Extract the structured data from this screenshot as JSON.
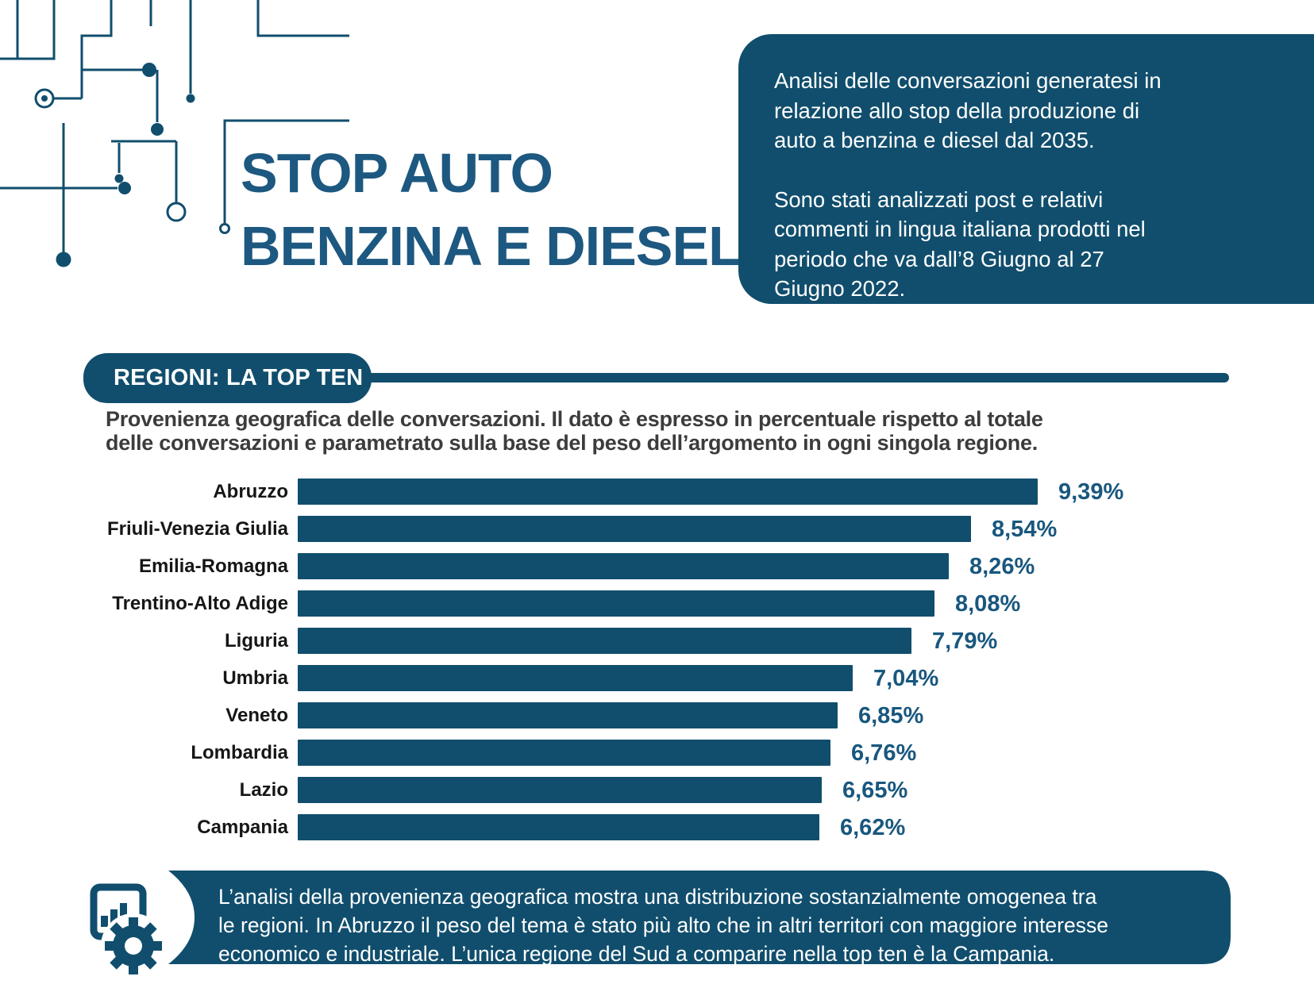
{
  "colors": {
    "primary": "#114E6D",
    "title": "#1D5880",
    "value_label": "#19577E",
    "subtitle_text": "#3C3C3C",
    "region_label": "#161616",
    "box_text": "#FFFFFF"
  },
  "header": {
    "title_line1": "STOP AUTO",
    "title_line2": "BENZINA E DIESEL"
  },
  "intro_box": {
    "paragraph1_lines": [
      "Analisi delle conversazioni generatesi in",
      "relazione allo stop della produzione di",
      "auto a benzina e diesel dal 2035."
    ],
    "paragraph2_lines": [
      "Sono stati analizzati post e relativi",
      "commenti in lingua italiana prodotti nel",
      "periodo che va dall’8 Giugno al 27",
      "Giugno 2022."
    ]
  },
  "section": {
    "badge_label": "REGIONI: LA TOP TEN",
    "subtitle_lines": [
      "Provenienza geografica delle conversazioni. Il dato è espresso in percentuale rispetto al totale",
      "delle conversazioni e parametrato sulla base del peso dell’argomento in ogni singola regione."
    ]
  },
  "chart_data": {
    "type": "bar",
    "orientation": "horizontal",
    "title": "Regioni: la top ten",
    "xlabel": "",
    "ylabel": "",
    "xlim": [
      0,
      10
    ],
    "grid": false,
    "bar_color": "#114E6D",
    "categories": [
      "Abruzzo",
      "Friuli-Venezia Giulia",
      "Emilia-Romagna",
      "Trentino-Alto Adige",
      "Liguria",
      "Umbria",
      "Veneto",
      "Lombardia",
      "Lazio",
      "Campania"
    ],
    "values": [
      9.39,
      8.54,
      8.26,
      8.08,
      7.79,
      7.04,
      6.85,
      6.76,
      6.65,
      6.62
    ],
    "value_labels": [
      "9,39%",
      "8,54%",
      "8,26%",
      "8,08%",
      "7,79%",
      "7,04%",
      "6,85%",
      "6,76%",
      "6,65%",
      "6,62%"
    ]
  },
  "footer_box": {
    "icon": "report-gear-icon",
    "text_lines": [
      "L’analisi della provenienza geografica mostra una distribuzione sostanzialmente omogenea tra",
      "le regioni. In Abruzzo il peso del tema è stato più alto che in altri territori con maggiore interesse",
      "economico e industriale. L’unica regione del Sud a comparire nella top ten è la Campania."
    ]
  }
}
